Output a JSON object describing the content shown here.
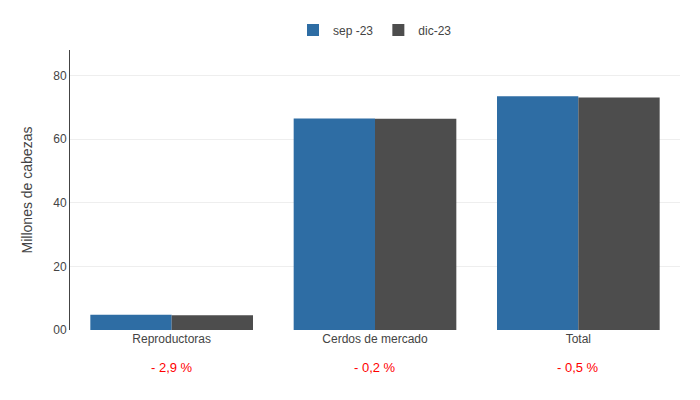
{
  "chart_data": {
    "type": "bar",
    "categories": [
      "Reproductoras",
      "Cerdos de mercado",
      "Total"
    ],
    "series": [
      {
        "name": "sep -23",
        "color": "#2E6DA4",
        "values": [
          4.8,
          66.5,
          73.5
        ]
      },
      {
        "name": "dic-23",
        "color": "#4d4d4d",
        "values": [
          4.6,
          66.4,
          73.1
        ]
      }
    ],
    "ylabel": "Millones de cabezas",
    "ylim": [
      0,
      88
    ],
    "yticks": [
      {
        "value": 0,
        "label": "00"
      },
      20,
      40,
      60,
      80
    ],
    "grid": true,
    "legend": "top",
    "annotations": [
      {
        "x": "Reproductoras",
        "text": "- 2,9 %",
        "color": "red"
      },
      {
        "x": "Cerdos de mercado",
        "text": "- 0,2 %",
        "color": "red"
      },
      {
        "x": "Total",
        "text": "- 0,5 %",
        "color": "red"
      }
    ]
  }
}
